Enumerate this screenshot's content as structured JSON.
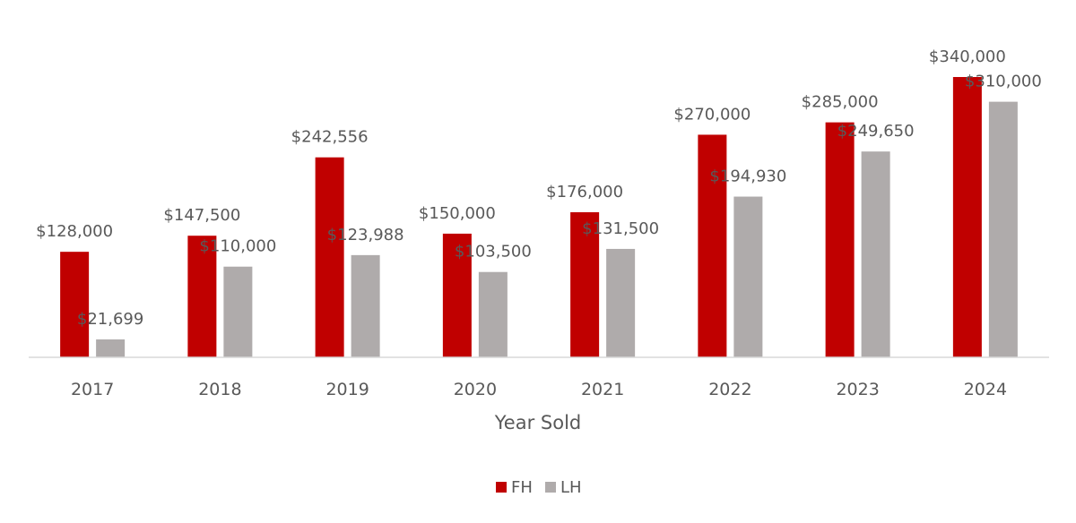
{
  "chart_data": {
    "type": "bar",
    "xlabel": "Year Sold",
    "ylabel": "",
    "categories": [
      "2017",
      "2018",
      "2019",
      "2020",
      "2021",
      "2022",
      "2023",
      "2024"
    ],
    "series": [
      {
        "name": "FH",
        "color": "#C00000",
        "values": [
          128000,
          147500,
          242556,
          150000,
          176000,
          270000,
          285000,
          340000
        ],
        "labels": [
          "$128,000",
          "$147,500",
          "$242,556",
          "$150,000",
          "$176,000",
          "$270,000",
          "$285,000",
          "$340,000"
        ]
      },
      {
        "name": "LH",
        "color": "#AFABAB",
        "values": [
          21699,
          110000,
          123988,
          103500,
          131500,
          194930,
          249650,
          310000
        ],
        "labels": [
          "$21,699",
          "$110,000",
          "$123,988",
          "$103,500",
          "$131,500",
          "$194,930",
          "$249,650",
          "$310,000"
        ]
      }
    ],
    "ylim": [
      0,
      340000
    ],
    "grid": false,
    "legend_position": "bottom"
  }
}
